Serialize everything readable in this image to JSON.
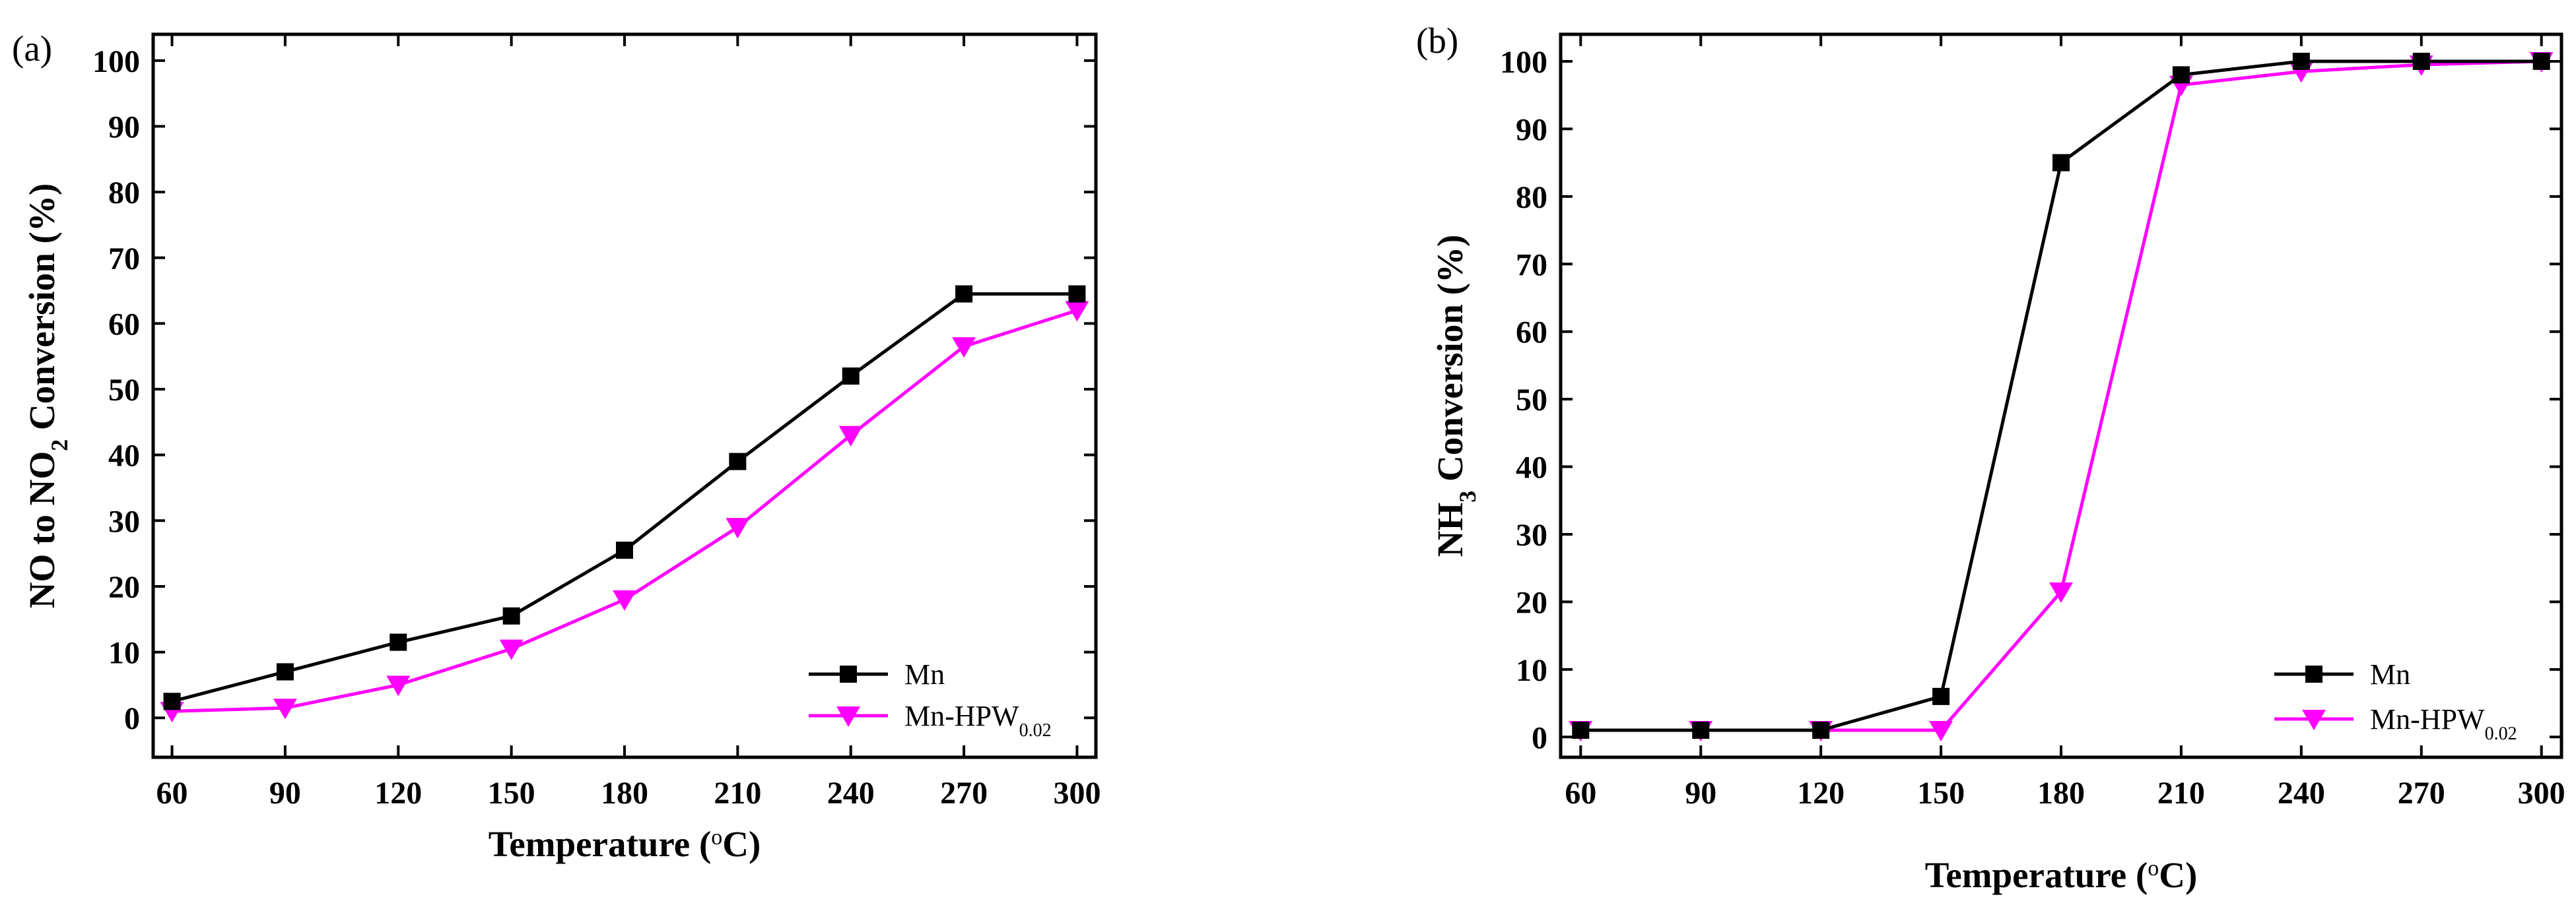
{
  "chart_data": [
    {
      "type": "line",
      "panel_label": "(a)",
      "ylabel_parts": [
        "NO to NO",
        "2",
        " Conversion (%)"
      ],
      "xlabel_parts": [
        "Temperature (",
        "o",
        "C)"
      ],
      "x": [
        60,
        90,
        120,
        150,
        180,
        210,
        240,
        270,
        300
      ],
      "xlim": [
        55,
        305
      ],
      "ylim": [
        -6,
        104
      ],
      "yticks": [
        0,
        10,
        20,
        30,
        40,
        50,
        60,
        70,
        80,
        90,
        100
      ],
      "legend_position": "bottom-right",
      "series": [
        {
          "name": "Mn",
          "name_parts": [
            "Mn",
            ""
          ],
          "color": "#000000",
          "marker": "square",
          "values": [
            2.5,
            7,
            11.5,
            15.5,
            25.5,
            39,
            52,
            64.5,
            64.5
          ]
        },
        {
          "name": "Mn-HPW0.02",
          "name_parts": [
            "Mn-HPW",
            "0.02"
          ],
          "color": "#ff00ff",
          "marker": "triangle-down",
          "values": [
            1,
            1.5,
            5,
            10.5,
            18,
            29,
            43,
            56.5,
            62
          ]
        }
      ]
    },
    {
      "type": "line",
      "panel_label": "(b)",
      "ylabel_parts": [
        "NH",
        "3",
        " Conversion (%)"
      ],
      "xlabel_parts": [
        "Temperature (",
        "o",
        "C)"
      ],
      "x": [
        60,
        90,
        120,
        150,
        180,
        210,
        240,
        270,
        300
      ],
      "xlim": [
        55,
        305
      ],
      "ylim": [
        -3,
        104
      ],
      "yticks": [
        0,
        10,
        20,
        30,
        40,
        50,
        60,
        70,
        80,
        90,
        100
      ],
      "legend_position": "bottom-right",
      "series": [
        {
          "name": "Mn",
          "name_parts": [
            "Mn",
            ""
          ],
          "color": "#000000",
          "marker": "square",
          "values": [
            1,
            1,
            1,
            6,
            85,
            98,
            100,
            100,
            100
          ]
        },
        {
          "name": "Mn-HPW0.02",
          "name_parts": [
            "Mn-HPW",
            "0.02"
          ],
          "color": "#ff00ff",
          "marker": "triangle-down",
          "values": [
            1,
            1,
            1,
            1,
            21.5,
            96.5,
            98.5,
            99.5,
            100
          ]
        }
      ]
    }
  ]
}
